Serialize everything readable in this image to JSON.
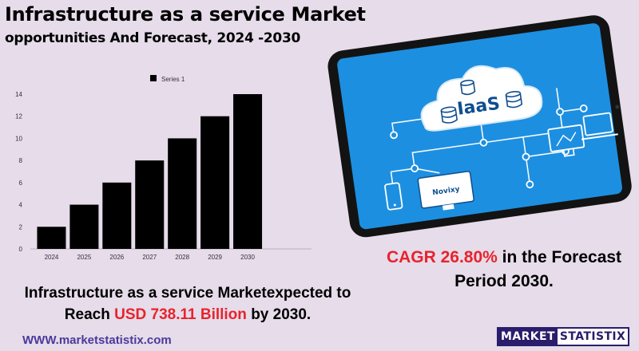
{
  "header": {
    "title_line1": "Infrastructure as a service Market",
    "title_line2": "opportunities And Forecast, 2024 -2030"
  },
  "chart_data": {
    "type": "bar",
    "categories": [
      "2024",
      "2025",
      "2026",
      "2027",
      "2028",
      "2029",
      "2030"
    ],
    "series": [
      {
        "name": "Series 1",
        "values": [
          2,
          4,
          6,
          8,
          10,
          12,
          14
        ]
      }
    ],
    "yticks": [
      0,
      2,
      4,
      6,
      8,
      10,
      12,
      14
    ],
    "ylim": [
      0,
      14
    ],
    "legend": "top-center",
    "grid": false,
    "bar_color": "#000000"
  },
  "illustration": {
    "label": "IaaS",
    "brand": "Novixy"
  },
  "cagr": {
    "value": "CAGR 26.80%",
    "rest": "in the  Forecast",
    "line2": "Period  2030."
  },
  "expectation": {
    "line1": "Infrastructure as a service Marketexpected to",
    "prefix": "Reach",
    "value": "USD 738.11 Billion",
    "suffix": "by 2030."
  },
  "footer": {
    "website": "WWW.marketstatistix.com",
    "logo_part1": "MARKET",
    "logo_part2": "STATISTIX"
  },
  "colors": {
    "background": "#e6dcea",
    "accent_red": "#e8232b",
    "brand_purple": "#2a1d6b",
    "screen_blue": "#1d8fe0"
  }
}
